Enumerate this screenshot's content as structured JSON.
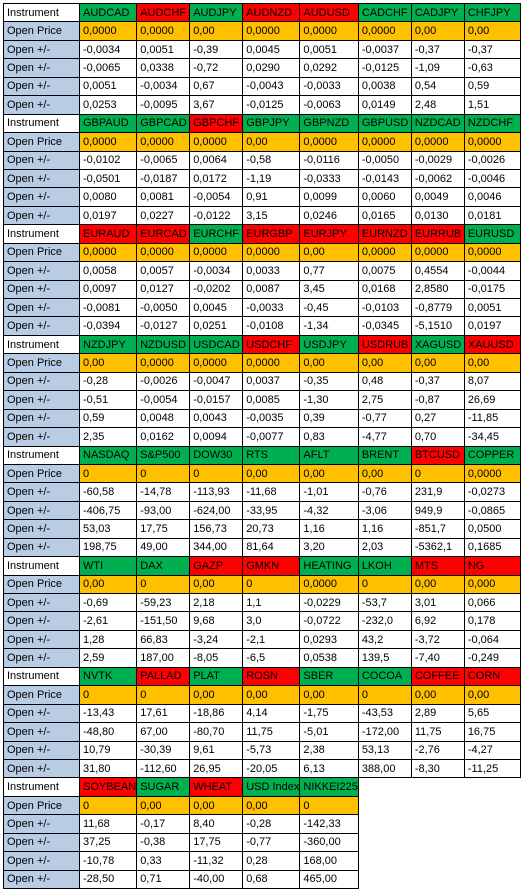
{
  "colors": {
    "label_bg": "#b8cce4",
    "header_up": "#00b050",
    "header_down": "#ff0000",
    "open_price_bg": "#ffc000",
    "cell_bg": "#ffffff"
  },
  "blocks": [
    {
      "header_label": "Instrument",
      "instruments": [
        {
          "name": "AUDCAD",
          "color": "green"
        },
        {
          "name": "AUDCHF",
          "color": "red"
        },
        {
          "name": "AUDJPY",
          "color": "green"
        },
        {
          "name": "AUDNZD",
          "color": "red"
        },
        {
          "name": "AUDUSD",
          "color": "red"
        },
        {
          "name": "CADCHF",
          "color": "green"
        },
        {
          "name": "CADJPY",
          "color": "green"
        },
        {
          "name": "CHFJPY",
          "color": "green"
        }
      ],
      "rows": [
        {
          "label": "Open Price",
          "values": [
            "0,0000",
            "0,0000",
            "0,00",
            "0,0000",
            "0,0000",
            "0,0000",
            "0,00",
            "0,00"
          ]
        },
        {
          "label": "Open +/-",
          "values": [
            "-0,0034",
            "0,0051",
            "-0,39",
            "0,0045",
            "0,0051",
            "-0,0037",
            "-0,37",
            "-0,37"
          ]
        },
        {
          "label": "Open +/-",
          "values": [
            "-0,0065",
            "0,0338",
            "-0,72",
            "0,0290",
            "0,0292",
            "-0,0125",
            "-1,09",
            "-0,63"
          ]
        },
        {
          "label": "Open +/-",
          "values": [
            "0,0051",
            "-0,0034",
            "0,67",
            "-0,0043",
            "-0,0033",
            "0,0038",
            "0,54",
            "0,59"
          ]
        },
        {
          "label": "Open +/-",
          "values": [
            "0,0253",
            "-0,0095",
            "3,67",
            "-0,0125",
            "-0,0063",
            "0,0149",
            "2,48",
            "1,51"
          ]
        }
      ]
    },
    {
      "header_label": "Instrument",
      "instruments": [
        {
          "name": "GBPAUD",
          "color": "green"
        },
        {
          "name": "GBPCAD",
          "color": "green"
        },
        {
          "name": "GBPCHF",
          "color": "red"
        },
        {
          "name": "GBPJPY",
          "color": "green"
        },
        {
          "name": "GBPNZD",
          "color": "green"
        },
        {
          "name": "GBPUSD",
          "color": "green"
        },
        {
          "name": "NZDCAD",
          "color": "green"
        },
        {
          "name": "NZDCHF",
          "color": "green"
        }
      ],
      "rows": [
        {
          "label": "Open Price",
          "values": [
            "0,0000",
            "0,0000",
            "0,0000",
            "0,00",
            "0,0000",
            "0,0000",
            "0,0000",
            "0,0000"
          ]
        },
        {
          "label": "Open +/-",
          "values": [
            "-0,0102",
            "-0,0065",
            "0,0064",
            "-0,58",
            "-0,0116",
            "-0,0050",
            "-0,0029",
            "-0,0026"
          ]
        },
        {
          "label": "Open +/-",
          "values": [
            "-0,0501",
            "-0,0187",
            "0,0172",
            "-1,19",
            "-0,0333",
            "-0,0143",
            "-0,0062",
            "-0,0046"
          ]
        },
        {
          "label": "Open +/-",
          "values": [
            "0,0080",
            "0,0081",
            "-0,0054",
            "0,91",
            "0,0099",
            "0,0060",
            "0,0049",
            "0,0046"
          ]
        },
        {
          "label": "Open +/-",
          "values": [
            "0,0197",
            "0,0227",
            "-0,0122",
            "3,15",
            "0,0246",
            "0,0165",
            "0,0130",
            "0,0181"
          ]
        }
      ]
    },
    {
      "header_label": "Instrument",
      "instruments": [
        {
          "name": "EURAUD",
          "color": "red"
        },
        {
          "name": "EURCAD",
          "color": "red"
        },
        {
          "name": "EURCHF",
          "color": "green"
        },
        {
          "name": "EURGBP",
          "color": "red"
        },
        {
          "name": "EURJPY",
          "color": "red"
        },
        {
          "name": "EURNZD",
          "color": "red"
        },
        {
          "name": "EURRUB",
          "color": "red"
        },
        {
          "name": "EURUSD",
          "color": "green"
        }
      ],
      "rows": [
        {
          "label": "Open Price",
          "values": [
            "0,0000",
            "0,0000",
            "0,0000",
            "0,0000",
            "0,00",
            "0,0000",
            "0,0000",
            "0,0000"
          ]
        },
        {
          "label": "Open +/-",
          "values": [
            "0,0058",
            "0,0057",
            "-0,0034",
            "0,0033",
            "0,77",
            "0,0075",
            "0,4554",
            "-0,0044"
          ]
        },
        {
          "label": "Open +/-",
          "values": [
            "0,0097",
            "0,0127",
            "-0,0202",
            "0,0087",
            "3,45",
            "0,0168",
            "2,8580",
            "-0,0175"
          ]
        },
        {
          "label": "Open +/-",
          "values": [
            "-0,0081",
            "-0,0050",
            "0,0045",
            "-0,0033",
            "-0,45",
            "-0,0103",
            "-0,8779",
            "0,0051"
          ]
        },
        {
          "label": "Open +/-",
          "values": [
            "-0,0394",
            "-0,0127",
            "0,0251",
            "-0,0108",
            "-1,34",
            "-0,0345",
            "-5,1510",
            "0,0197"
          ]
        }
      ]
    },
    {
      "header_label": "Instrument",
      "instruments": [
        {
          "name": "NZDJPY",
          "color": "green"
        },
        {
          "name": "NZDUSD",
          "color": "green"
        },
        {
          "name": "USDCAD",
          "color": "green"
        },
        {
          "name": "USDCHF",
          "color": "red"
        },
        {
          "name": "USDJPY",
          "color": "green"
        },
        {
          "name": "USDRUB",
          "color": "red"
        },
        {
          "name": "XAGUSD",
          "color": "green"
        },
        {
          "name": "XAUUSD",
          "color": "red"
        }
      ],
      "rows": [
        {
          "label": "Open Price",
          "values": [
            "0,00",
            "0,0000",
            "0,0000",
            "0,0000",
            "0,00",
            "0,00",
            "0,00",
            "0,00"
          ]
        },
        {
          "label": "Open +/-",
          "values": [
            "-0,28",
            "-0,0026",
            "-0,0047",
            "0,0037",
            "-0,35",
            "0,48",
            "-0,37",
            "8,07"
          ]
        },
        {
          "label": "Open +/-",
          "values": [
            "-0,51",
            "-0,0054",
            "-0,0157",
            "0,0085",
            "-1,30",
            "2,75",
            "-0,87",
            "26,69"
          ]
        },
        {
          "label": "Open +/-",
          "values": [
            "0,59",
            "0,0048",
            "0,0043",
            "-0,0035",
            "0,39",
            "-0,77",
            "0,27",
            "-11,85"
          ]
        },
        {
          "label": "Open +/-",
          "values": [
            "2,35",
            "0,0162",
            "0,0094",
            "-0,0077",
            "0,83",
            "-4,77",
            "0,70",
            "-34,45"
          ]
        }
      ]
    },
    {
      "header_label": "Instrument",
      "instruments": [
        {
          "name": "NASDAQ",
          "color": "green"
        },
        {
          "name": "S&P500",
          "color": "green"
        },
        {
          "name": "DOW30",
          "color": "green"
        },
        {
          "name": "RTS",
          "color": "green"
        },
        {
          "name": "AFLT",
          "color": "green"
        },
        {
          "name": "BRENT",
          "color": "green"
        },
        {
          "name": "BTCUSD",
          "color": "red"
        },
        {
          "name": "COPPER",
          "color": "green"
        }
      ],
      "rows": [
        {
          "label": "Open Price",
          "values": [
            "0",
            "0",
            "0",
            "0,00",
            "0,00",
            "0,00",
            "0",
            "0,0000"
          ]
        },
        {
          "label": "Open +/-",
          "values": [
            "-60,58",
            "-14,78",
            "-113,93",
            "-11,68",
            "-1,01",
            "-0,76",
            "231,9",
            "-0,0273"
          ]
        },
        {
          "label": "Open +/-",
          "values": [
            "-406,75",
            "-93,00",
            "-624,00",
            "-33,95",
            "-4,32",
            "-3,06",
            "949,9",
            "-0,0865"
          ]
        },
        {
          "label": "Open +/-",
          "values": [
            "53,03",
            "17,75",
            "156,73",
            "20,73",
            "1,16",
            "1,16",
            "-851,7",
            "0,0500"
          ]
        },
        {
          "label": "Open +/-",
          "values": [
            "198,75",
            "49,00",
            "344,00",
            "81,64",
            "3,20",
            "2,03",
            "-5362,1",
            "0,1685"
          ]
        }
      ]
    },
    {
      "header_label": "Instrument",
      "instruments": [
        {
          "name": "WTI",
          "color": "green"
        },
        {
          "name": "DAX",
          "color": "green"
        },
        {
          "name": "GAZP",
          "color": "red"
        },
        {
          "name": "GMKN",
          "color": "red"
        },
        {
          "name": "HEATING",
          "color": "green"
        },
        {
          "name": "LKOH",
          "color": "green"
        },
        {
          "name": "MTS",
          "color": "red"
        },
        {
          "name": "NG",
          "color": "red"
        }
      ],
      "rows": [
        {
          "label": "Open Price",
          "values": [
            "0,00",
            "0",
            "0,00",
            "0",
            "0,0000",
            "0",
            "0,00",
            "0,000"
          ]
        },
        {
          "label": "Open +/-",
          "values": [
            "-0,69",
            "-59,23",
            "2,18",
            "1,1",
            "-0,0229",
            "-53,7",
            "3,01",
            "0,066"
          ]
        },
        {
          "label": "Open +/-",
          "values": [
            "-2,61",
            "-151,50",
            "9,68",
            "3,0",
            "-0,0722",
            "-232,0",
            "6,92",
            "0,178"
          ]
        },
        {
          "label": "Open +/-",
          "values": [
            "1,28",
            "66,83",
            "-3,24",
            "-2,1",
            "0,0293",
            "43,2",
            "-3,72",
            "-0,064"
          ]
        },
        {
          "label": "Open +/-",
          "values": [
            "2,59",
            "187,00",
            "-8,05",
            "-6,5",
            "0,0538",
            "139,5",
            "-7,40",
            "-0,249"
          ]
        }
      ]
    },
    {
      "header_label": "Instrument",
      "instruments": [
        {
          "name": "NVTK",
          "color": "green"
        },
        {
          "name": "PALLAD",
          "color": "red"
        },
        {
          "name": "PLAT",
          "color": "green"
        },
        {
          "name": "ROSN",
          "color": "red"
        },
        {
          "name": "SBER",
          "color": "green"
        },
        {
          "name": "COCOA",
          "color": "green"
        },
        {
          "name": "COFFEE",
          "color": "red"
        },
        {
          "name": "CORN",
          "color": "red"
        }
      ],
      "rows": [
        {
          "label": "Open Price",
          "values": [
            "0",
            "0",
            "0,00",
            "0,00",
            "0,00",
            "0",
            "0,00",
            "0,00"
          ]
        },
        {
          "label": "Open +/-",
          "values": [
            "-13,43",
            "17,61",
            "-18,86",
            "4,14",
            "-1,75",
            "-43,53",
            "2,89",
            "5,65"
          ]
        },
        {
          "label": "Open +/-",
          "values": [
            "-48,80",
            "67,00",
            "-80,70",
            "11,75",
            "-5,01",
            "-172,00",
            "11,75",
            "16,75"
          ]
        },
        {
          "label": "Open +/-",
          "values": [
            "10,79",
            "-30,39",
            "9,61",
            "-5,73",
            "2,38",
            "53,13",
            "-2,76",
            "-4,27"
          ]
        },
        {
          "label": "Open +/-",
          "values": [
            "31,80",
            "-112,60",
            "26,95",
            "-20,05",
            "6,13",
            "388,00",
            "-8,30",
            "-11,25"
          ]
        }
      ]
    },
    {
      "header_label": "Instrument",
      "instruments": [
        {
          "name": "SOYBEAN",
          "color": "red"
        },
        {
          "name": "SUGAR",
          "color": "green"
        },
        {
          "name": "WHEAT",
          "color": "red"
        },
        {
          "name": "USD Index",
          "color": "green"
        },
        {
          "name": "NIKKEI225",
          "color": "green"
        }
      ],
      "rows": [
        {
          "label": "Open Price",
          "values": [
            "0",
            "0,00",
            "0,00",
            "0,00",
            "0"
          ]
        },
        {
          "label": "Open +/-",
          "values": [
            "11,68",
            "-0,17",
            "8,40",
            "-0,28",
            "-142,33"
          ]
        },
        {
          "label": "Open +/-",
          "values": [
            "37,25",
            "-0,38",
            "17,75",
            "-0,77",
            "-360,00"
          ]
        },
        {
          "label": "Open +/-",
          "values": [
            "-10,78",
            "0,33",
            "-11,32",
            "0,28",
            "168,00"
          ]
        },
        {
          "label": "Open +/-",
          "values": [
            "-28,50",
            "0,71",
            "-40,00",
            "0,68",
            "465,00"
          ]
        }
      ]
    }
  ]
}
